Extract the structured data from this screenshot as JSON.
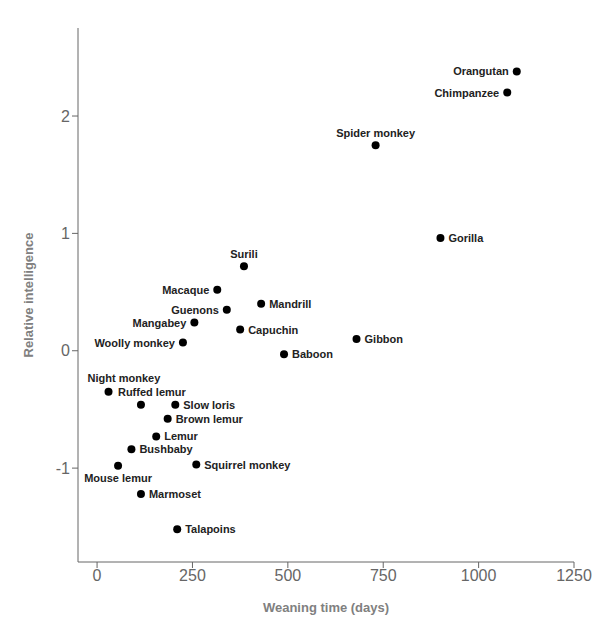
{
  "chart_data": {
    "type": "scatter",
    "xlabel": "Weaning time (days)",
    "ylabel": "Relative intelligence",
    "point_labels": [
      "Orangutan",
      "Chimpanzee",
      "Spider monkey",
      "Gorilla",
      "Surili",
      "Macaque",
      "Mandrill",
      "Guenons",
      "Mangabey",
      "Capuchin",
      "Gibbon",
      "Woolly monkey",
      "Baboon",
      "Night monkey",
      "Ruffed lemur",
      "Slow loris",
      "Brown lemur",
      "Lemur",
      "Bushbaby",
      "Mouse lemur",
      "Squirrel monkey",
      "Marmoset",
      "Talapoins"
    ],
    "x": [
      1100,
      1075,
      730,
      900,
      385,
      315,
      430,
      340,
      255,
      375,
      680,
      225,
      490,
      30,
      115,
      205,
      185,
      155,
      90,
      55,
      260,
      115,
      210
    ],
    "values": [
      2.38,
      2.2,
      1.75,
      0.96,
      0.72,
      0.52,
      0.4,
      0.35,
      0.24,
      0.18,
      0.1,
      0.07,
      -0.03,
      -0.35,
      -0.46,
      -0.46,
      -0.58,
      -0.73,
      -0.84,
      -0.98,
      -0.97,
      -1.22,
      -1.52
    ],
    "color": "#000000",
    "xlim": [
      -50,
      1250
    ],
    "ylim": [
      -1.8,
      2.75
    ],
    "xticks": [
      0,
      250,
      500,
      750,
      1000,
      1250
    ],
    "yticks": [
      -1,
      0,
      1,
      2
    ]
  }
}
